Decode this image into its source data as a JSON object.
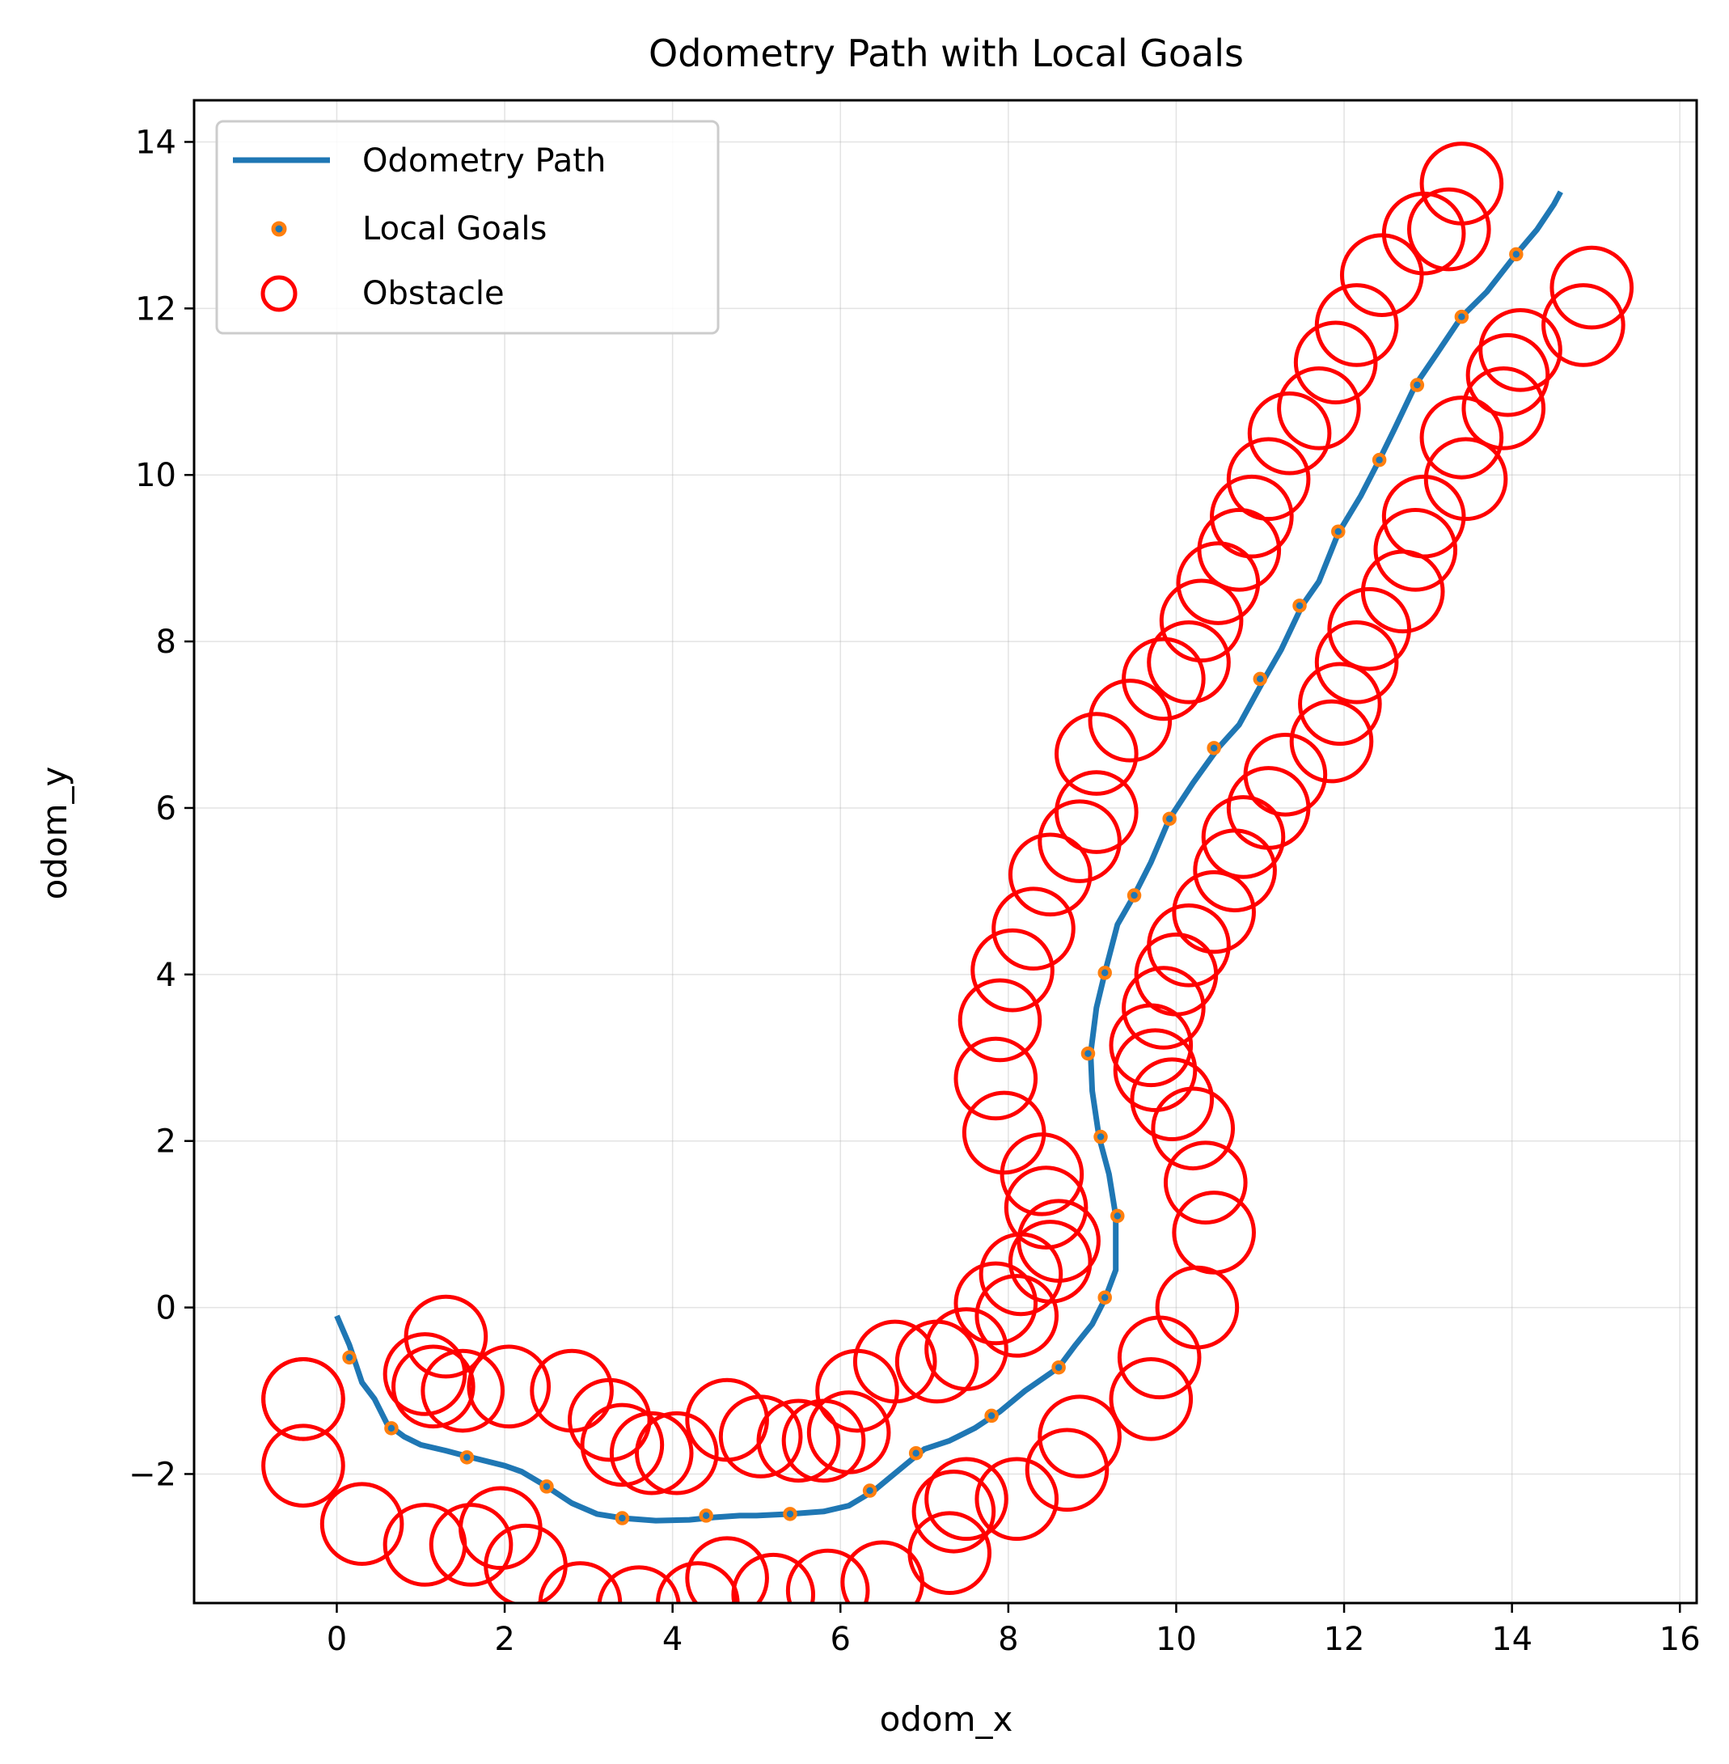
{
  "chart_data": {
    "type": "scatter",
    "title": "Odometry Path with Local Goals",
    "xlabel": "odom_x",
    "ylabel": "odom_y",
    "xlim": [
      -1.7,
      16.2
    ],
    "ylim": [
      -3.55,
      14.5
    ],
    "xticks": [
      0,
      2,
      4,
      6,
      8,
      10,
      12,
      14,
      16
    ],
    "yticks": [
      -2,
      0,
      2,
      4,
      6,
      8,
      10,
      12,
      14
    ],
    "xtick_labels": [
      "0",
      "2",
      "4",
      "6",
      "8",
      "10",
      "12",
      "14",
      "16"
    ],
    "ytick_labels": [
      "−2",
      "0",
      "2",
      "4",
      "6",
      "8",
      "10",
      "12",
      "14"
    ],
    "grid": true,
    "legend_position": "top-left",
    "legend": [
      "Odometry Path",
      "Local Goals",
      "Obstacle"
    ],
    "colors": {
      "path": "#1f77b4",
      "goals": "#ff7f0e",
      "obstacles": "#ff0000"
    },
    "series": [
      {
        "name": "Odometry Path",
        "type": "line",
        "points": [
          [
            0.0,
            -0.1
          ],
          [
            0.15,
            -0.45
          ],
          [
            0.3,
            -0.9
          ],
          [
            0.45,
            -1.1
          ],
          [
            0.6,
            -1.4
          ],
          [
            0.8,
            -1.55
          ],
          [
            1.0,
            -1.65
          ],
          [
            1.3,
            -1.72
          ],
          [
            1.6,
            -1.8
          ],
          [
            2.0,
            -1.9
          ],
          [
            2.2,
            -1.97
          ],
          [
            2.5,
            -2.15
          ],
          [
            2.8,
            -2.35
          ],
          [
            3.1,
            -2.48
          ],
          [
            3.4,
            -2.53
          ],
          [
            3.8,
            -2.56
          ],
          [
            4.2,
            -2.55
          ],
          [
            4.5,
            -2.52
          ],
          [
            4.8,
            -2.5
          ],
          [
            5.0,
            -2.5
          ],
          [
            5.4,
            -2.48
          ],
          [
            5.8,
            -2.45
          ],
          [
            6.1,
            -2.38
          ],
          [
            6.4,
            -2.2
          ],
          [
            6.7,
            -1.95
          ],
          [
            7.0,
            -1.7
          ],
          [
            7.3,
            -1.6
          ],
          [
            7.6,
            -1.45
          ],
          [
            7.9,
            -1.25
          ],
          [
            8.2,
            -1.0
          ],
          [
            8.6,
            -0.72
          ],
          [
            8.8,
            -0.45
          ],
          [
            9.0,
            -0.2
          ],
          [
            9.15,
            0.1
          ],
          [
            9.28,
            0.45
          ],
          [
            9.28,
            1.1
          ],
          [
            9.2,
            1.6
          ],
          [
            9.08,
            2.05
          ],
          [
            9.0,
            2.6
          ],
          [
            8.98,
            3.05
          ],
          [
            9.05,
            3.6
          ],
          [
            9.15,
            4.02
          ],
          [
            9.3,
            4.6
          ],
          [
            9.5,
            4.95
          ],
          [
            9.7,
            5.35
          ],
          [
            9.92,
            5.87
          ],
          [
            10.2,
            6.3
          ],
          [
            10.5,
            6.72
          ],
          [
            10.75,
            7.0
          ],
          [
            11.05,
            7.55
          ],
          [
            11.25,
            7.9
          ],
          [
            11.5,
            8.43
          ],
          [
            11.7,
            8.72
          ],
          [
            11.93,
            9.3
          ],
          [
            12.2,
            9.75
          ],
          [
            12.42,
            10.18
          ],
          [
            12.6,
            10.55
          ],
          [
            12.85,
            11.08
          ],
          [
            13.1,
            11.45
          ],
          [
            13.4,
            11.9
          ],
          [
            13.7,
            12.2
          ],
          [
            14.05,
            12.65
          ],
          [
            14.3,
            12.95
          ],
          [
            14.5,
            13.25
          ],
          [
            14.58,
            13.4
          ]
        ]
      },
      {
        "name": "Local Goals",
        "type": "scatter",
        "points": [
          [
            0.15,
            -0.6
          ],
          [
            0.65,
            -1.45
          ],
          [
            1.55,
            -1.8
          ],
          [
            2.5,
            -2.15
          ],
          [
            3.4,
            -2.53
          ],
          [
            4.4,
            -2.5
          ],
          [
            5.4,
            -2.48
          ],
          [
            6.35,
            -2.2
          ],
          [
            6.9,
            -1.75
          ],
          [
            7.8,
            -1.3
          ],
          [
            8.6,
            -0.72
          ],
          [
            9.15,
            0.12
          ],
          [
            9.3,
            1.1
          ],
          [
            9.1,
            2.05
          ],
          [
            8.95,
            3.05
          ],
          [
            9.15,
            4.02
          ],
          [
            9.5,
            4.95
          ],
          [
            9.92,
            5.87
          ],
          [
            10.45,
            6.72
          ],
          [
            11.0,
            7.55
          ],
          [
            11.47,
            8.43
          ],
          [
            11.93,
            9.32
          ],
          [
            12.42,
            10.18
          ],
          [
            12.87,
            11.08
          ],
          [
            13.4,
            11.9
          ],
          [
            14.05,
            12.65
          ]
        ]
      },
      {
        "name": "Obstacle",
        "type": "scatter",
        "points": [
          [
            -0.4,
            -1.1
          ],
          [
            -0.4,
            -1.9
          ],
          [
            0.3,
            -2.6
          ],
          [
            1.05,
            -2.85
          ],
          [
            1.6,
            -2.85
          ],
          [
            1.95,
            -2.65
          ],
          [
            2.25,
            -3.1
          ],
          [
            2.9,
            -3.55
          ],
          [
            3.6,
            -3.6
          ],
          [
            4.3,
            -3.55
          ],
          [
            4.65,
            -3.25
          ],
          [
            5.2,
            -3.45
          ],
          [
            5.85,
            -3.4
          ],
          [
            6.5,
            -3.3
          ],
          [
            7.3,
            -2.95
          ],
          [
            7.35,
            -2.45
          ],
          [
            7.5,
            -2.3
          ],
          [
            8.1,
            -2.3
          ],
          [
            8.7,
            -1.95
          ],
          [
            8.85,
            -1.55
          ],
          [
            9.7,
            -1.1
          ],
          [
            9.8,
            -0.6
          ],
          [
            10.25,
            0.0
          ],
          [
            10.45,
            0.9
          ],
          [
            10.35,
            1.5
          ],
          [
            10.2,
            2.15
          ],
          [
            9.95,
            2.5
          ],
          [
            9.75,
            2.85
          ],
          [
            9.7,
            3.15
          ],
          [
            9.85,
            3.6
          ],
          [
            10.0,
            4.0
          ],
          [
            10.15,
            4.35
          ],
          [
            10.45,
            4.75
          ],
          [
            10.7,
            5.25
          ],
          [
            10.8,
            5.65
          ],
          [
            11.1,
            6.0
          ],
          [
            11.3,
            6.4
          ],
          [
            11.85,
            6.8
          ],
          [
            11.95,
            7.25
          ],
          [
            12.15,
            7.75
          ],
          [
            12.3,
            8.15
          ],
          [
            12.7,
            8.6
          ],
          [
            12.85,
            9.1
          ],
          [
            12.95,
            9.5
          ],
          [
            13.45,
            9.95
          ],
          [
            13.4,
            10.45
          ],
          [
            13.9,
            10.8
          ],
          [
            13.95,
            11.2
          ],
          [
            14.1,
            11.5
          ],
          [
            14.85,
            11.8
          ],
          [
            14.95,
            12.25
          ],
          [
            -0.4,
            -1.1
          ],
          [
            1.05,
            -0.8
          ],
          [
            1.15,
            -0.95
          ],
          [
            1.3,
            -0.35
          ],
          [
            1.5,
            -1.0
          ],
          [
            2.05,
            -0.95
          ],
          [
            2.8,
            -1.0
          ],
          [
            3.25,
            -1.35
          ],
          [
            3.4,
            -1.65
          ],
          [
            3.75,
            -1.75
          ],
          [
            4.05,
            -1.75
          ],
          [
            4.65,
            -1.35
          ],
          [
            5.05,
            -1.55
          ],
          [
            5.5,
            -1.6
          ],
          [
            5.8,
            -1.6
          ],
          [
            6.1,
            -1.5
          ],
          [
            6.2,
            -1.0
          ],
          [
            6.65,
            -0.65
          ],
          [
            7.15,
            -0.65
          ],
          [
            7.5,
            -0.5
          ],
          [
            7.85,
            0.05
          ],
          [
            8.1,
            -0.1
          ],
          [
            8.15,
            0.4
          ],
          [
            8.5,
            0.55
          ],
          [
            8.6,
            0.8
          ],
          [
            8.45,
            1.2
          ],
          [
            8.4,
            1.6
          ],
          [
            7.95,
            2.1
          ],
          [
            7.85,
            2.75
          ],
          [
            7.9,
            3.45
          ],
          [
            8.05,
            4.05
          ],
          [
            8.3,
            4.55
          ],
          [
            8.5,
            5.2
          ],
          [
            8.85,
            5.6
          ],
          [
            9.05,
            5.95
          ],
          [
            9.05,
            6.65
          ],
          [
            9.45,
            7.05
          ],
          [
            9.85,
            7.55
          ],
          [
            10.15,
            7.75
          ],
          [
            10.3,
            8.25
          ],
          [
            10.5,
            8.7
          ],
          [
            10.75,
            9.1
          ],
          [
            10.9,
            9.5
          ],
          [
            11.1,
            9.95
          ],
          [
            11.35,
            10.5
          ],
          [
            11.7,
            10.8
          ],
          [
            11.9,
            11.35
          ],
          [
            12.15,
            11.8
          ],
          [
            12.45,
            12.4
          ],
          [
            12.95,
            12.9
          ],
          [
            13.25,
            12.95
          ],
          [
            13.4,
            13.5
          ]
        ]
      }
    ]
  }
}
